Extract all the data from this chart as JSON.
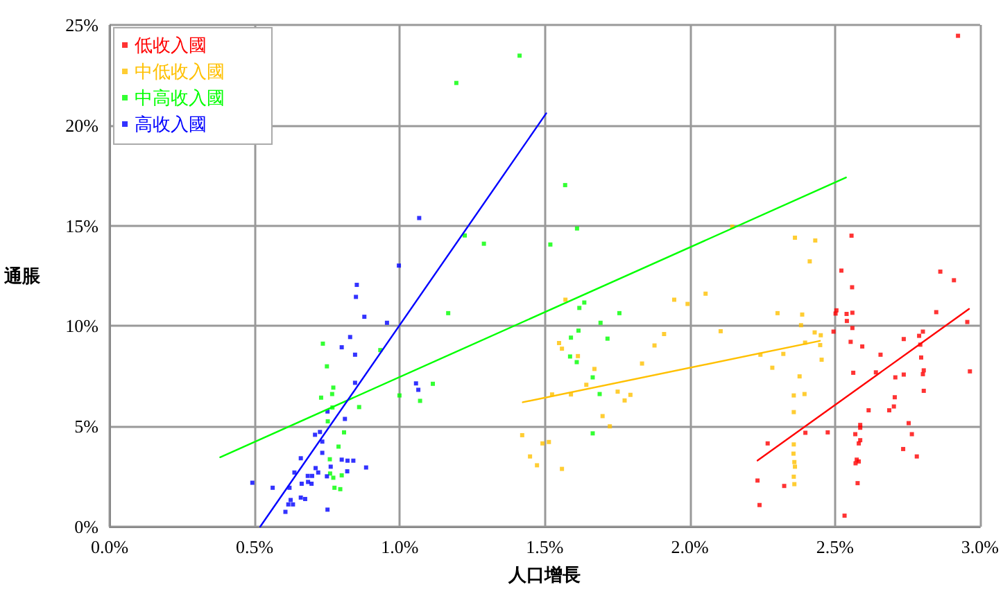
{
  "chart_data": {
    "type": "scatter",
    "xlabel": "人口增長",
    "ylabel": "通脹",
    "grid": true,
    "legend": "top left",
    "xlim": [
      0,
      0.03
    ],
    "ylim": [
      0,
      0.25
    ],
    "xticks": [
      {
        "value": 0,
        "label": "0.0%"
      },
      {
        "value": 0.005,
        "label": "0.5%"
      },
      {
        "value": 0.01,
        "label": "1.0%"
      },
      {
        "value": 0.015,
        "label": "1.5%"
      },
      {
        "value": 0.02,
        "label": "2.0%"
      },
      {
        "value": 0.025,
        "label": "2.5%"
      },
      {
        "value": 0.03,
        "label": "3.0%"
      }
    ],
    "yticks": [
      {
        "value": 0,
        "label": "0%"
      },
      {
        "value": 0.05,
        "label": "5%"
      },
      {
        "value": 0.1,
        "label": "10%"
      },
      {
        "value": 0.15,
        "label": "15%"
      },
      {
        "value": 0.2,
        "label": "20%"
      },
      {
        "value": 0.25,
        "label": "25%"
      }
    ],
    "series": [
      {
        "name": "低收入國",
        "marker": "square",
        "color": "#ff0000",
        "x": [
          0.02557,
          0.02522,
          0.02559,
          0.02863,
          0.0291,
          0.02505,
          0.02502,
          0.0254,
          0.0256,
          0.02849,
          0.02541,
          0.02956,
          0.0256,
          0.02495,
          0.02803,
          0.0279,
          0.02737,
          0.02554,
          0.02794,
          0.02594,
          0.02657,
          0.02797,
          0.02563,
          0.02641,
          0.02806,
          0.02803,
          0.02965,
          0.02708,
          0.02737,
          0.02806,
          0.02706,
          0.02703,
          0.02616,
          0.02687,
          0.02754,
          0.02587,
          0.02587,
          0.02398,
          0.02475,
          0.0257,
          0.02765,
          0.02587,
          0.02582,
          0.02268,
          0.02735,
          0.02782,
          0.02575,
          0.02582,
          0.02571,
          0.02233,
          0.02325,
          0.02578,
          0.0224,
          0.02533,
          0.02924
        ],
        "values": [
          0.145,
          0.1276,
          0.1193,
          0.1271,
          0.1228,
          0.1078,
          0.1062,
          0.106,
          0.1066,
          0.1069,
          0.1025,
          0.102,
          0.099,
          0.0972,
          0.0972,
          0.0951,
          0.0935,
          0.0921,
          0.0907,
          0.0898,
          0.0857,
          0.0843,
          0.0767,
          0.0769,
          0.0779,
          0.076,
          0.0774,
          0.0744,
          0.0758,
          0.0677,
          0.0645,
          0.0599,
          0.058,
          0.058,
          0.0516,
          0.0507,
          0.0493,
          0.0468,
          0.047,
          0.0461,
          0.0461,
          0.0431,
          0.0415,
          0.0415,
          0.0387,
          0.035,
          0.0334,
          0.0325,
          0.0316,
          0.023,
          0.0203,
          0.0217,
          0.0108,
          0.0055,
          0.2446
        ]
      },
      {
        "name": "中低收入國",
        "marker": "square",
        "color": "#ffc000",
        "x": [
          0.02362,
          0.02432,
          0.02413,
          0.02302,
          0.02387,
          0.02383,
          0.0243,
          0.02451,
          0.02397,
          0.02449,
          0.02243,
          0.02322,
          0.02454,
          0.02284,
          0.02378,
          0.02358,
          0.02395,
          0.02358,
          0.02358,
          0.02357,
          0.0236,
          0.02362,
          0.02358,
          0.0236,
          0.02146,
          0.01571,
          0.01946,
          0.01992,
          0.02054,
          0.01911,
          0.02106,
          0.01549,
          0.01559,
          0.01878,
          0.01614,
          0.01835,
          0.01671,
          0.01643,
          0.01525,
          0.0159,
          0.01751,
          0.01795,
          0.01775,
          0.01699,
          0.01724,
          0.01422,
          0.01492,
          0.01514,
          0.01449,
          0.01473,
          0.01559
        ],
        "values": [
          0.144,
          0.1426,
          0.1322,
          0.1064,
          0.1057,
          0.1004,
          0.0968,
          0.0954,
          0.0917,
          0.0905,
          0.0857,
          0.0861,
          0.0832,
          0.0792,
          0.0749,
          0.0654,
          0.0661,
          0.0571,
          0.041,
          0.0364,
          0.0322,
          0.0299,
          0.0249,
          0.0212,
          0.1495,
          0.1131,
          0.1131,
          0.111,
          0.1161,
          0.096,
          0.0974,
          0.0915,
          0.0887,
          0.0903,
          0.085,
          0.0813,
          0.0786,
          0.0707,
          0.0659,
          0.0659,
          0.0673,
          0.0657,
          0.0629,
          0.0551,
          0.05,
          0.0456,
          0.0415,
          0.0422,
          0.035,
          0.0306,
          0.0288
        ]
      },
      {
        "name": "中高收入國",
        "marker": "square",
        "color": "#00ff00",
        "x": [
          0.0157,
          0.01611,
          0.01519,
          0.01636,
          0.01619,
          0.01757,
          0.01692,
          0.01616,
          0.0159,
          0.01716,
          0.01587,
          0.0161,
          0.01665,
          0.01689,
          0.01665,
          0.01413,
          0.01195,
          0.01224,
          0.0129,
          0.01167,
          0.00735,
          0.00933,
          0.00749,
          0.00771,
          0.00767,
          0.00729,
          0.00999,
          0.01114,
          0.0107,
          0.0086,
          0.00768,
          0.00752,
          0.00808,
          0.00789,
          0.00759,
          0.0076,
          0.00771,
          0.008,
          0.00775,
          0.00795
        ],
        "values": [
          0.1702,
          0.1486,
          0.1406,
          0.1117,
          0.109,
          0.1064,
          0.1016,
          0.0977,
          0.0942,
          0.0937,
          0.0848,
          0.082,
          0.0744,
          0.0661,
          0.0465,
          0.2347,
          0.2211,
          0.1451,
          0.141,
          0.1064,
          0.0912,
          0.088,
          0.0799,
          0.0693,
          0.0661,
          0.0643,
          0.0654,
          0.0712,
          0.0627,
          0.0596,
          0.0594,
          0.0525,
          0.047,
          0.0399,
          0.0336,
          0.0265,
          0.0244,
          0.0256,
          0.0194,
          0.0187
        ]
      },
      {
        "name": "高收入國",
        "marker": "square",
        "color": "#0000ff",
        "x": [
          0.00997,
          0.00852,
          0.00849,
          0.00878,
          0.00956,
          0.00829,
          0.008,
          0.00846,
          0.01056,
          0.01064,
          0.00846,
          0.00811,
          0.00751,
          0.00725,
          0.00708,
          0.00733,
          0.00733,
          0.00659,
          0.008,
          0.0082,
          0.0084,
          0.00884,
          0.00819,
          0.0071,
          0.00762,
          0.00637,
          0.00719,
          0.00683,
          0.00698,
          0.00749,
          0.00684,
          0.00696,
          0.00662,
          0.00562,
          0.0062,
          0.00492,
          0.00659,
          0.00674,
          0.00624,
          0.00616,
          0.00632,
          0.00606,
          0.00751,
          0.01067
        ],
        "values": [
          0.1301,
          0.1205,
          0.1145,
          0.1046,
          0.1016,
          0.0945,
          0.0894,
          0.0857,
          0.0714,
          0.0682,
          0.0717,
          0.0537,
          0.0574,
          0.0472,
          0.0458,
          0.0424,
          0.0368,
          0.0341,
          0.0334,
          0.0329,
          0.0329,
          0.0295,
          0.0276,
          0.0292,
          0.0299,
          0.027,
          0.027,
          0.0253,
          0.0253,
          0.0251,
          0.0223,
          0.0214,
          0.0214,
          0.0194,
          0.0194,
          0.0219,
          0.0145,
          0.0138,
          0.0133,
          0.0111,
          0.0111,
          0.0074,
          0.0085,
          0.1538
        ]
      },
      {
        "type": "line",
        "marker": "none",
        "color": "#ff0000",
        "x": [
          0.02233,
          0.02962
        ],
        "values": [
          0.033,
          0.1085
        ]
      },
      {
        "type": "line",
        "marker": "none",
        "color": "#ffc000",
        "x": [
          0.01424,
          0.02448
        ],
        "values": [
          0.062,
          0.0926
        ]
      },
      {
        "type": "line",
        "marker": "none",
        "color": "#00ff00",
        "x": [
          0.00381,
          0.02538
        ],
        "values": [
          0.0346,
          0.174
        ]
      },
      {
        "type": "line",
        "marker": "none",
        "color": "#0000ff",
        "x": [
          0.00519,
          0.01505
        ],
        "values": [
          0,
          0.206
        ]
      }
    ]
  }
}
